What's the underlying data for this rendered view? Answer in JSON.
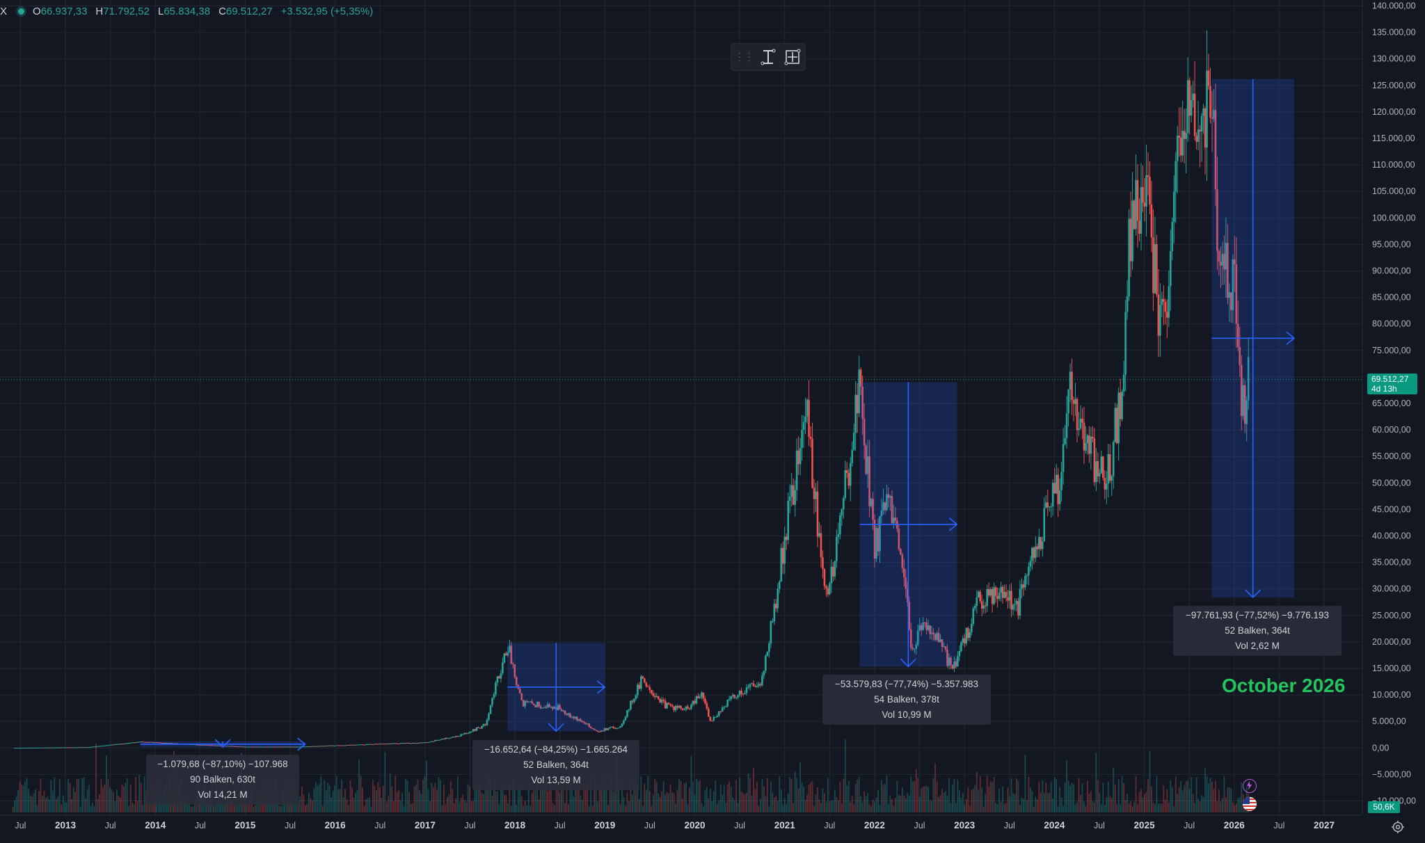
{
  "header": {
    "symbol_tail": "X",
    "items": [
      {
        "key": "O",
        "value": "66.937,33"
      },
      {
        "key": "H",
        "value": "71.792,52"
      },
      {
        "key": "L",
        "value": "65.834,38"
      },
      {
        "key": "C",
        "value": "69.512,27"
      }
    ],
    "change": "+3.532,95 (+5,35%)"
  },
  "current_price": {
    "price": "69.512,27",
    "countdown": "4d 13h"
  },
  "volume_label": "50,6K",
  "measurements": [
    {
      "line1": "−1.079,68 (−87,10%) −107.968",
      "line2": "90 Balken, 630t",
      "line3": "Vol 14,21 M"
    },
    {
      "line1": "−16.652,64 (−84,25%) −1.665.264",
      "line2": "52 Balken, 364t",
      "line3": "Vol 13,59 M"
    },
    {
      "line1": "−53.579,83 (−77,74%) −5.357.983",
      "line2": "54 Balken, 378t",
      "line3": "Vol 10,99 M"
    },
    {
      "line1": "−97.761,93 (−77,52%) −9.776.193",
      "line2": "52 Balken, 364t",
      "line3": "Vol 2,62 M"
    }
  ],
  "annotation": "October 2026",
  "colors": {
    "up": "#26a69a",
    "down": "#ef5350",
    "measure": "#2962ff",
    "annotation": "#22c55e",
    "background": "#131722"
  },
  "chart_data": {
    "type": "candlestick",
    "x_axis": {
      "range": [
        "2012-06",
        "2027-03"
      ],
      "tick_labels": [
        "Jul",
        "2013",
        "Jul",
        "2014",
        "Jul",
        "2015",
        "Jul",
        "2016",
        "Jul",
        "2017",
        "Jul",
        "2018",
        "Jul",
        "2019",
        "Jul",
        "2020",
        "Jul",
        "2021",
        "Jul",
        "2022",
        "Jul",
        "2023",
        "Jul",
        "2024",
        "Jul",
        "2025",
        "Jul",
        "2026",
        "Jul",
        "2027"
      ]
    },
    "y_axis": {
      "range": [
        -10000,
        140000
      ],
      "tick_values": [
        140000,
        135000,
        130000,
        125000,
        120000,
        115000,
        110000,
        105000,
        100000,
        95000,
        90000,
        85000,
        80000,
        75000,
        70000,
        65000,
        60000,
        55000,
        50000,
        45000,
        40000,
        35000,
        30000,
        25000,
        20000,
        15000,
        10000,
        5000,
        0,
        -5000,
        -10000
      ],
      "tick_labels": [
        "140.000,00",
        "135.000,00",
        "130.000,00",
        "125.000,00",
        "120.000,00",
        "115.000,00",
        "110.000,00",
        "105.000,00",
        "100.000,00",
        "95.000,00",
        "90.000,00",
        "85.000,00",
        "80.000,00",
        "75.000,00",
        "70.000,00",
        "65.000,00",
        "60.000,00",
        "55.000,00",
        "50.000,00",
        "45.000,00",
        "40.000,00",
        "35.000,00",
        "30.000,00",
        "25.000,00",
        "20.000,00",
        "15.000,00",
        "10.000,00",
        "5.000,00",
        "0,00",
        "−5.000,00",
        "−10.000,00"
      ]
    },
    "grid": true,
    "price_path": [
      [
        "2012-06",
        6
      ],
      [
        "2013-04",
        140
      ],
      [
        "2013-11",
        1150
      ],
      [
        "2014-06",
        650
      ],
      [
        "2015-01",
        220
      ],
      [
        "2015-08",
        230
      ],
      [
        "2016-06",
        700
      ],
      [
        "2017-01",
        1000
      ],
      [
        "2017-06",
        2500
      ],
      [
        "2017-09",
        4300
      ],
      [
        "2017-12",
        19600
      ],
      [
        "2018-02",
        8500
      ],
      [
        "2018-05",
        8000
      ],
      [
        "2018-07",
        7500
      ],
      [
        "2018-11",
        4000
      ],
      [
        "2018-12",
        3200
      ],
      [
        "2019-03",
        4000
      ],
      [
        "2019-06",
        13000
      ],
      [
        "2019-09",
        8000
      ],
      [
        "2019-12",
        7200
      ],
      [
        "2020-02",
        10200
      ],
      [
        "2020-03",
        5000
      ],
      [
        "2020-06",
        9500
      ],
      [
        "2020-10",
        13000
      ],
      [
        "2020-12",
        29000
      ],
      [
        "2021-01",
        40000
      ],
      [
        "2021-04",
        64000
      ],
      [
        "2021-06",
        32000
      ],
      [
        "2021-07",
        30000
      ],
      [
        "2021-09",
        48000
      ],
      [
        "2021-11",
        69000
      ],
      [
        "2022-01",
        38000
      ],
      [
        "2022-03",
        47000
      ],
      [
        "2022-05",
        30000
      ],
      [
        "2022-06",
        19000
      ],
      [
        "2022-08",
        24000
      ],
      [
        "2022-11",
        16000
      ],
      [
        "2022-12",
        16500
      ],
      [
        "2023-03",
        28000
      ],
      [
        "2023-06",
        30500
      ],
      [
        "2023-08",
        26000
      ],
      [
        "2023-10",
        35000
      ],
      [
        "2023-12",
        44000
      ],
      [
        "2024-02",
        52000
      ],
      [
        "2024-03",
        73000
      ],
      [
        "2024-05",
        57000
      ],
      [
        "2024-08",
        50000
      ],
      [
        "2024-10",
        67000
      ],
      [
        "2024-11",
        95000
      ],
      [
        "2024-12",
        104000
      ],
      [
        "2025-01",
        106000
      ],
      [
        "2025-03",
        82000
      ],
      [
        "2025-04",
        76000
      ],
      [
        "2025-05",
        105000
      ],
      [
        "2025-07",
        120000
      ],
      [
        "2025-08",
        115000
      ],
      [
        "2025-10",
        126000
      ],
      [
        "2025-11",
        87000
      ],
      [
        "2025-12",
        90000
      ],
      [
        "2026-01",
        88000
      ],
      [
        "2026-02",
        62000
      ],
      [
        "2026-03",
        69512
      ]
    ],
    "measure_boxes": [
      {
        "from": [
          "2013-11",
          1240
        ],
        "to": [
          "2015-09",
          160
        ]
      },
      {
        "from": [
          "2017-12",
          19800
        ],
        "to": [
          "2019-01",
          3150
        ]
      },
      {
        "from": [
          "2021-11",
          69000
        ],
        "to": [
          "2022-12",
          15350
        ]
      },
      {
        "from": [
          "2025-10",
          126200
        ],
        "to": [
          "2026-09",
          28400
        ]
      }
    ]
  }
}
